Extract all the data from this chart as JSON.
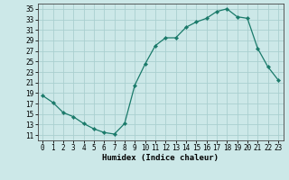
{
  "x": [
    0,
    1,
    2,
    3,
    4,
    5,
    6,
    7,
    8,
    9,
    10,
    11,
    12,
    13,
    14,
    15,
    16,
    17,
    18,
    19,
    20,
    21,
    22,
    23
  ],
  "y": [
    18.5,
    17.2,
    15.3,
    14.5,
    13.2,
    12.2,
    11.5,
    11.2,
    13.2,
    20.5,
    24.5,
    28.0,
    29.5,
    29.5,
    31.5,
    32.5,
    33.2,
    34.5,
    35.0,
    33.5,
    33.2,
    27.5,
    24.0,
    21.5
  ],
  "line_color": "#1a7a6a",
  "marker": "D",
  "marker_size": 2.2,
  "bg_color": "#cce8e8",
  "grid_color": "#aacfcf",
  "xlabel": "Humidex (Indice chaleur)",
  "xlim": [
    -0.5,
    23.5
  ],
  "ylim": [
    10,
    36
  ],
  "yticks": [
    11,
    13,
    15,
    17,
    19,
    21,
    23,
    25,
    27,
    29,
    31,
    33,
    35
  ],
  "xticks": [
    0,
    1,
    2,
    3,
    4,
    5,
    6,
    7,
    8,
    9,
    10,
    11,
    12,
    13,
    14,
    15,
    16,
    17,
    18,
    19,
    20,
    21,
    22,
    23
  ],
  "xtick_labels": [
    "0",
    "1",
    "2",
    "3",
    "4",
    "5",
    "6",
    "7",
    "8",
    "9",
    "10",
    "11",
    "12",
    "13",
    "14",
    "15",
    "16",
    "17",
    "18",
    "19",
    "20",
    "21",
    "22",
    "23"
  ],
  "label_fontsize": 6.5,
  "tick_fontsize": 5.5,
  "line_width": 0.9
}
